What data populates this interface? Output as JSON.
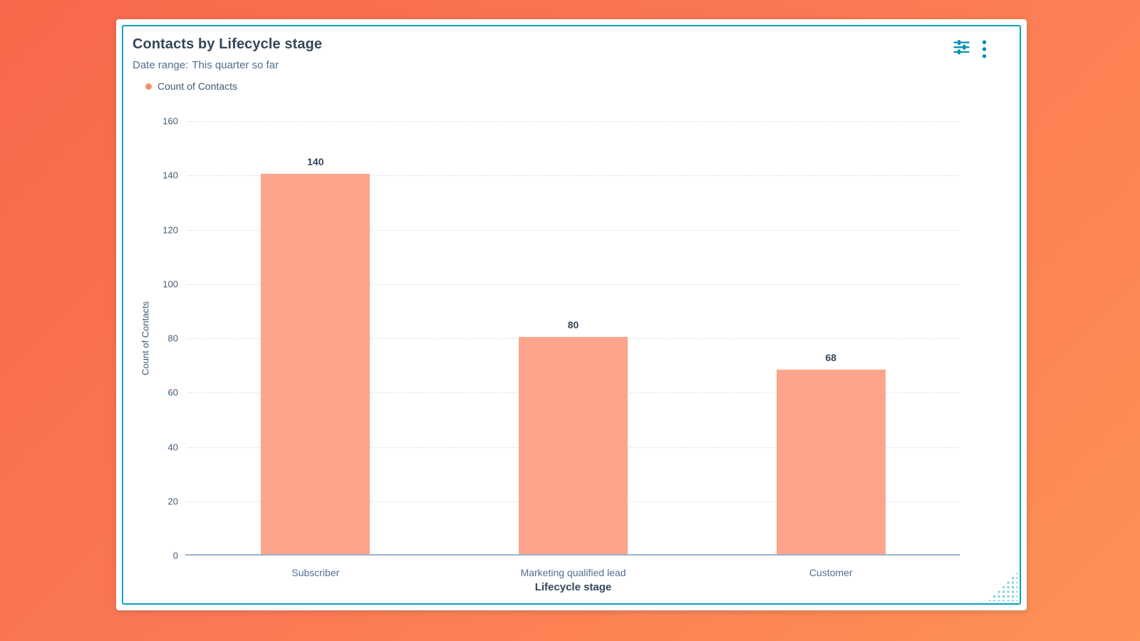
{
  "widget": {
    "title": "Contacts by Lifecycle stage",
    "date_range_label": "Date range:",
    "date_range_value": "This quarter so far",
    "legend": [
      {
        "label": "Count of Contacts",
        "color": "#f98b72"
      }
    ],
    "toolbar": {
      "filters_icon": "sliders-icon",
      "more_icon": "vertical-ellipsis-icon"
    },
    "accent_border_color": "#00a4bd",
    "icon_color": "#0091ae",
    "resize_handle_color": "#7ed0de"
  },
  "chart_data": {
    "type": "bar",
    "title": "Contacts by Lifecycle stage",
    "categories": [
      "Subscriber",
      "Marketing qualified lead",
      "Customer"
    ],
    "series": [
      {
        "name": "Count of Contacts",
        "values": [
          140,
          80,
          68
        ],
        "color": "#fda58c"
      }
    ],
    "xlabel": "Lifecycle stage",
    "ylabel": "Count of Contacts",
    "ylim": [
      0,
      160
    ],
    "ytick_step": 20,
    "grid": true,
    "gridline_style": "dashed",
    "legend_position": "top-left",
    "data_labels_shown": true
  }
}
